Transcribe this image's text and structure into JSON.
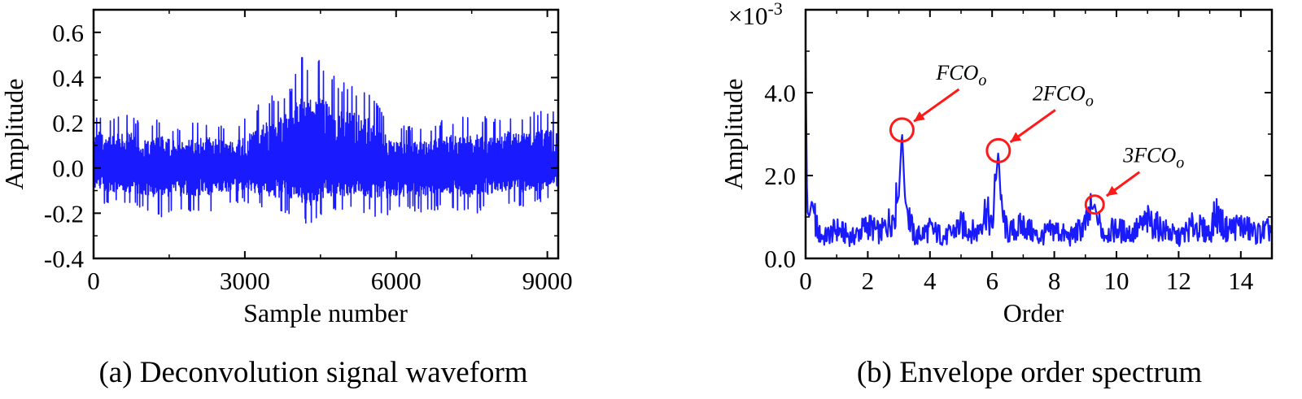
{
  "colors": {
    "series": "#1a1aff",
    "annotation": "#ff1a1a",
    "axis": "#000000"
  },
  "chart_data": [
    {
      "type": "line",
      "caption": "(a) Deconvolution signal waveform",
      "xlabel": "Sample number",
      "ylabel": "Amplitude",
      "xlim": [
        0,
        9216
      ],
      "ylim": [
        -0.4,
        0.7
      ],
      "xticks": [
        0,
        3000,
        6000,
        9000
      ],
      "xtick_labels": [
        "0",
        "3000",
        "6000",
        "9000"
      ],
      "yticks": [
        -0.4,
        -0.2,
        0.0,
        0.2,
        0.4,
        0.6
      ],
      "ytick_labels": [
        "-0.4",
        "-0.2",
        "0.0",
        "0.2",
        "0.4",
        "0.6"
      ],
      "grid": false,
      "series": [
        {
          "x": [
            0,
            330,
            660,
            990,
            1320,
            1650,
            1980,
            2310,
            2640,
            2970,
            3300,
            3630,
            3960,
            4030,
            4290,
            4350,
            4620,
            4950,
            5280,
            5610,
            5940,
            6270,
            6600,
            6930,
            7260,
            7590,
            7920,
            8250,
            8580,
            8910,
            9216
          ],
          "y_upper": [
            0.26,
            0.22,
            0.25,
            0.2,
            0.22,
            0.18,
            0.2,
            0.21,
            0.18,
            0.21,
            0.3,
            0.33,
            0.39,
            0.51,
            0.46,
            0.55,
            0.45,
            0.39,
            0.37,
            0.32,
            0.19,
            0.19,
            0.18,
            0.22,
            0.23,
            0.24,
            0.22,
            0.25,
            0.24,
            0.26,
            0.25
          ],
          "y_lower": [
            -0.15,
            -0.16,
            -0.17,
            -0.18,
            -0.22,
            -0.19,
            -0.19,
            -0.2,
            -0.16,
            -0.15,
            -0.18,
            -0.2,
            -0.21,
            -0.22,
            -0.27,
            -0.23,
            -0.21,
            -0.2,
            -0.19,
            -0.22,
            -0.2,
            -0.19,
            -0.2,
            -0.18,
            -0.19,
            -0.21,
            -0.17,
            -0.16,
            -0.18,
            -0.15,
            -0.12
          ]
        }
      ]
    },
    {
      "type": "line",
      "caption": "(b) Envelope order spectrum",
      "xlabel": "Order",
      "ylabel": "Amplitude",
      "scale_note": "×10-3",
      "xlim": [
        0,
        15
      ],
      "ylim": [
        0,
        6.0
      ],
      "xticks": [
        0,
        2,
        4,
        6,
        8,
        10,
        12,
        14
      ],
      "xtick_labels": [
        "0",
        "2",
        "4",
        "6",
        "8",
        "10",
        "12",
        "14"
      ],
      "yticks": [
        0,
        2.0,
        4.0
      ],
      "ytick_labels": [
        "0.0",
        "2.0",
        "4.0"
      ],
      "grid": false,
      "series": [
        {
          "x": [
            0,
            0.05,
            0.1,
            0.2,
            0.4,
            0.6,
            1.0,
            1.5,
            2.0,
            2.4,
            2.8,
            3.0,
            3.1,
            3.2,
            3.5,
            4.0,
            4.5,
            5.0,
            5.5,
            5.8,
            6.0,
            6.2,
            6.3,
            6.5,
            7.0,
            7.5,
            8.0,
            8.5,
            9.0,
            9.3,
            9.4,
            9.6,
            10.0,
            10.5,
            11.0,
            11.5,
            12.0,
            12.5,
            13.0,
            13.2,
            13.5,
            14.0,
            14.5,
            15.0
          ],
          "y": [
            4.9,
            1.2,
            0.9,
            1.4,
            0.6,
            0.5,
            0.7,
            0.5,
            0.8,
            0.6,
            1.0,
            1.5,
            3.1,
            1.4,
            0.5,
            0.7,
            0.5,
            0.8,
            0.6,
            1.2,
            0.7,
            2.6,
            1.1,
            0.6,
            0.8,
            0.5,
            0.7,
            0.5,
            0.8,
            1.3,
            0.9,
            0.6,
            0.7,
            0.6,
            0.9,
            0.7,
            0.5,
            0.8,
            0.6,
            1.1,
            0.7,
            0.8,
            0.6,
            0.7
          ]
        }
      ],
      "annotations": [
        {
          "label": "FCO",
          "subscript": "o",
          "x": 3.1,
          "y": 3.1
        },
        {
          "label": "2FCO",
          "subscript": "o",
          "x": 6.2,
          "y": 2.6
        },
        {
          "label": "3FCO",
          "subscript": "o",
          "x": 9.3,
          "y": 1.3
        }
      ]
    }
  ]
}
